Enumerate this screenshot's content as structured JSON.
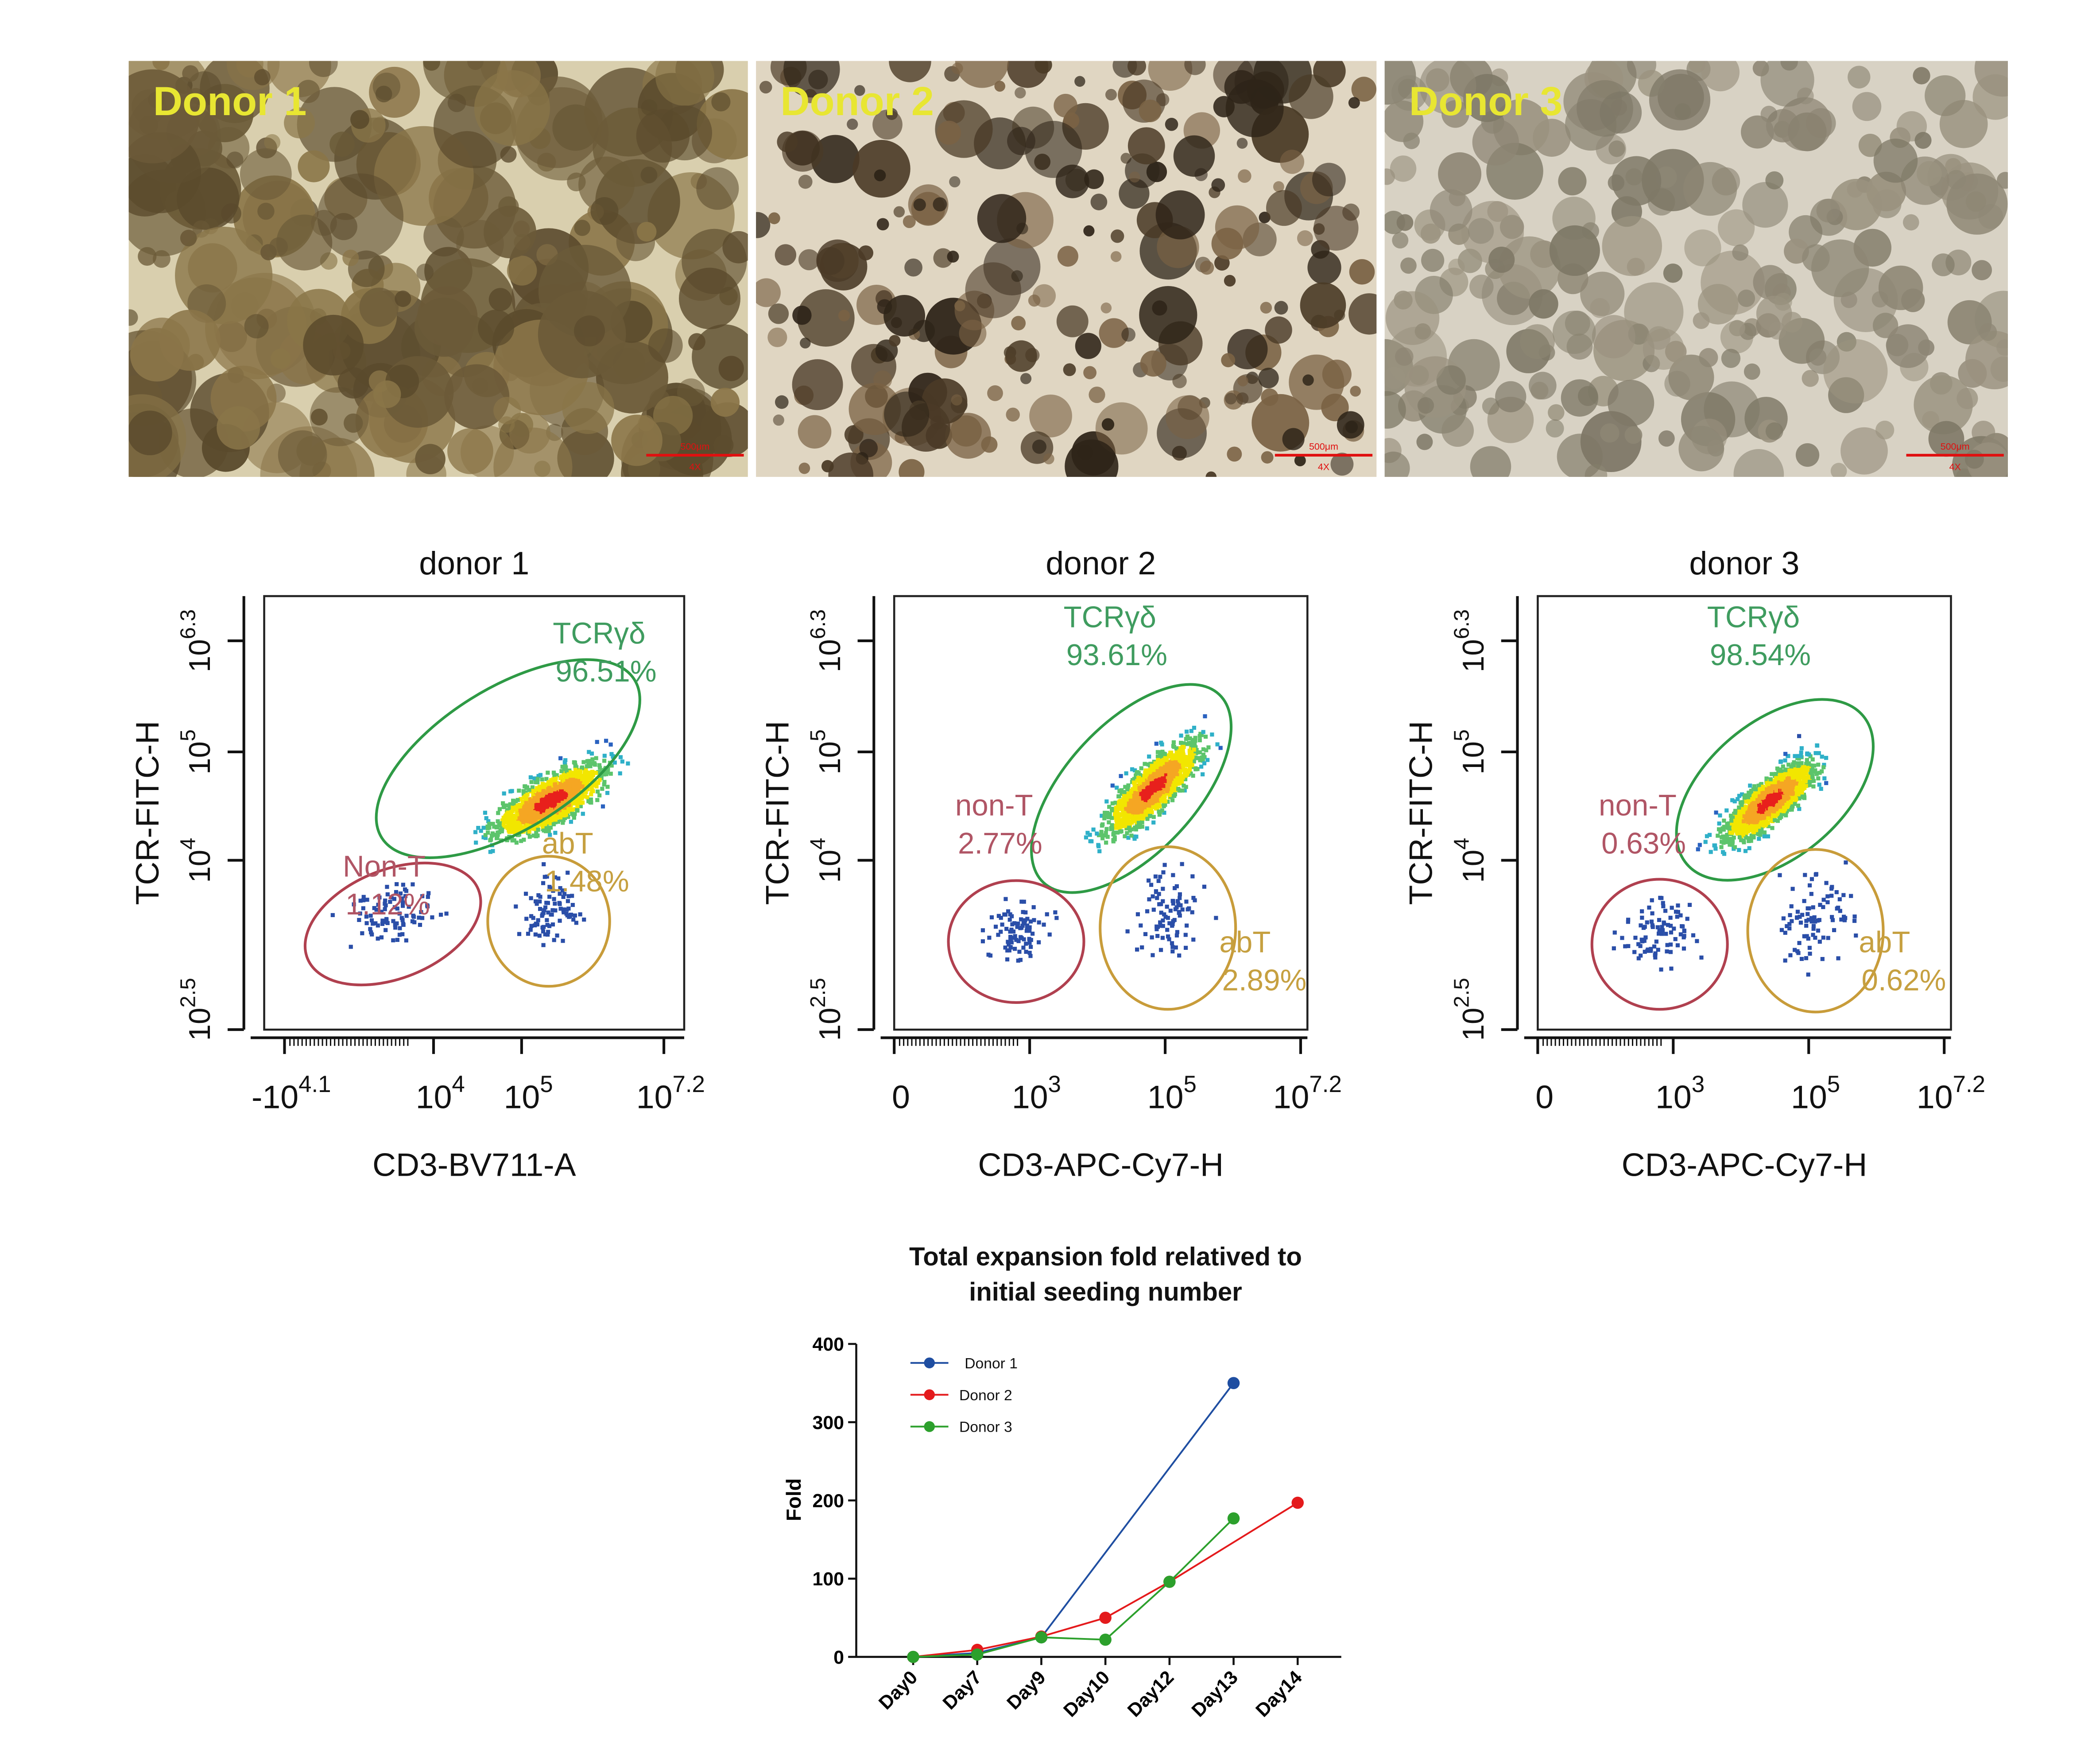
{
  "images": [
    {
      "label": "Donor 1",
      "scale_bar": "500μm",
      "magnification": "4X"
    },
    {
      "label": "Donor 2",
      "scale_bar": "500μm",
      "magnification": "4X"
    },
    {
      "label": "Donor 3",
      "scale_bar": "500μm",
      "magnification": "4X"
    }
  ],
  "flow_plots": [
    {
      "title": "donor 1",
      "x_label": "CD3-BV711-A",
      "y_label": "TCR-FITC-H",
      "x_ticks": [
        {
          "base": "-10",
          "exp": "4.1"
        },
        {
          "base": "10",
          "exp": "4"
        },
        {
          "base": "10",
          "exp": "5"
        },
        {
          "base": "10",
          "exp": "7.2"
        }
      ],
      "y_ticks": [
        {
          "base": "10",
          "exp": "6.3"
        },
        {
          "base": "10",
          "exp": "5"
        },
        {
          "base": "10",
          "exp": "4"
        },
        {
          "base": "10",
          "exp": "2.5"
        }
      ],
      "gates": [
        {
          "name": "TCRγδ",
          "percent": "96.51%"
        },
        {
          "name": "Non-T",
          "percent": "1.12%"
        },
        {
          "name": "abT",
          "percent": "1.48%"
        }
      ]
    },
    {
      "title": "donor 2",
      "x_label": "CD3-APC-Cy7-H",
      "y_label": "TCR-FITC-H",
      "x_ticks": [
        {
          "base": "0"
        },
        {
          "base": "10",
          "exp": "3"
        },
        {
          "base": "10",
          "exp": "5"
        },
        {
          "base": "10",
          "exp": "7.2"
        }
      ],
      "y_ticks": [
        {
          "base": "10",
          "exp": "6.3"
        },
        {
          "base": "10",
          "exp": "5"
        },
        {
          "base": "10",
          "exp": "4"
        },
        {
          "base": "10",
          "exp": "2.5"
        }
      ],
      "gates": [
        {
          "name": "TCRγδ",
          "percent": "93.61%"
        },
        {
          "name": "non-T",
          "percent": "2.77%"
        },
        {
          "name": "abT",
          "percent": "2.89%"
        }
      ]
    },
    {
      "title": "donor 3",
      "x_label": "CD3-APC-Cy7-H",
      "y_label": "TCR-FITC-H",
      "x_ticks": [
        {
          "base": "0"
        },
        {
          "base": "10",
          "exp": "3"
        },
        {
          "base": "10",
          "exp": "5"
        },
        {
          "base": "10",
          "exp": "7.2"
        }
      ],
      "y_ticks": [
        {
          "base": "10",
          "exp": "6.3"
        },
        {
          "base": "10",
          "exp": "5"
        },
        {
          "base": "10",
          "exp": "4"
        },
        {
          "base": "10",
          "exp": "2.5"
        }
      ],
      "gates": [
        {
          "name": "TCRγδ",
          "percent": "98.54%"
        },
        {
          "name": "non-T",
          "percent": "0.63%"
        },
        {
          "name": "abT",
          "percent": "0.62%"
        }
      ]
    }
  ],
  "chart_data": {
    "type": "line",
    "title": [
      "Total expansion fold relatived to",
      "initial seeding number"
    ],
    "y_label": "Fold",
    "categories": [
      "Day0",
      "Day7",
      "Day9",
      "Day10",
      "Day12",
      "Day13",
      "Day14"
    ],
    "series": [
      {
        "name": "Donor 1",
        "color": "#1f4ea1",
        "values": [
          0,
          5,
          25,
          null,
          null,
          350,
          null
        ]
      },
      {
        "name": "Donor 2",
        "color": "#e41a1c",
        "values": [
          0,
          9,
          26,
          50,
          96,
          null,
          197
        ]
      },
      {
        "name": "Donor 3",
        "color": "#2ca02c",
        "values": [
          0,
          3,
          25,
          22,
          96,
          177,
          null
        ]
      }
    ],
    "span_gaps": true,
    "ylim": [
      0,
      400
    ],
    "yticks": [
      0,
      100,
      200,
      300,
      400
    ]
  }
}
